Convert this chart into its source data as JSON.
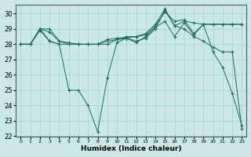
{
  "xlabel": "Humidex (Indice chaleur)",
  "xlim": [
    -0.5,
    23.5
  ],
  "ylim": [
    22,
    30.6
  ],
  "yticks": [
    22,
    23,
    24,
    25,
    26,
    27,
    28,
    29,
    30
  ],
  "xticks": [
    0,
    1,
    2,
    3,
    4,
    5,
    6,
    7,
    8,
    9,
    10,
    11,
    12,
    13,
    14,
    15,
    16,
    17,
    18,
    19,
    20,
    21,
    22,
    23
  ],
  "background_color": "#cbe8e8",
  "line_color": "#1a6b5a",
  "grid_color": "#aacfcf",
  "series": [
    {
      "x": [
        0,
        1,
        2,
        3,
        4,
        5,
        6,
        7,
        8,
        9,
        10,
        11,
        12,
        13,
        14,
        15,
        16,
        17,
        18,
        19,
        20,
        21,
        22,
        23
      ],
      "y": [
        28.0,
        28.0,
        28.9,
        28.2,
        28.0,
        25.0,
        25.0,
        24.0,
        22.3,
        25.8,
        28.1,
        28.4,
        28.1,
        28.5,
        29.1,
        29.5,
        28.5,
        29.4,
        28.6,
        29.3,
        27.5,
        26.5,
        24.8,
        22.7
      ]
    },
    {
      "x": [
        0,
        1,
        2,
        3,
        4,
        5,
        6,
        7,
        8,
        9,
        10,
        11,
        12,
        13,
        14,
        15,
        16,
        17,
        18,
        19,
        20,
        21,
        22,
        23
      ],
      "y": [
        28.0,
        28.0,
        29.0,
        28.2,
        28.0,
        28.0,
        28.0,
        28.0,
        28.0,
        28.2,
        28.3,
        28.4,
        28.2,
        28.4,
        29.0,
        30.2,
        29.2,
        29.0,
        28.5,
        28.2,
        27.8,
        27.5,
        27.5,
        22.5
      ]
    },
    {
      "x": [
        0,
        1,
        2,
        3,
        4,
        5,
        6,
        7,
        8,
        9,
        10,
        11,
        12,
        13,
        14,
        15,
        16,
        17,
        18,
        19,
        20,
        21,
        22,
        23
      ],
      "y": [
        28.0,
        28.0,
        29.0,
        29.0,
        28.2,
        28.1,
        28.0,
        28.0,
        28.0,
        28.3,
        28.4,
        28.4,
        28.5,
        28.7,
        29.3,
        30.3,
        29.2,
        29.5,
        29.4,
        29.3,
        29.3,
        29.3,
        29.3,
        29.3
      ]
    },
    {
      "x": [
        0,
        1,
        2,
        3,
        4,
        5,
        6,
        7,
        8,
        9,
        10,
        11,
        12,
        13,
        14,
        15,
        16,
        17,
        18,
        19,
        20,
        21,
        22,
        23
      ],
      "y": [
        28.0,
        28.0,
        29.0,
        28.8,
        28.2,
        28.0,
        28.0,
        28.0,
        28.0,
        28.0,
        28.3,
        28.5,
        28.5,
        28.6,
        29.2,
        30.1,
        29.5,
        29.6,
        28.7,
        29.3,
        29.3,
        29.3,
        29.3,
        29.3
      ]
    }
  ]
}
